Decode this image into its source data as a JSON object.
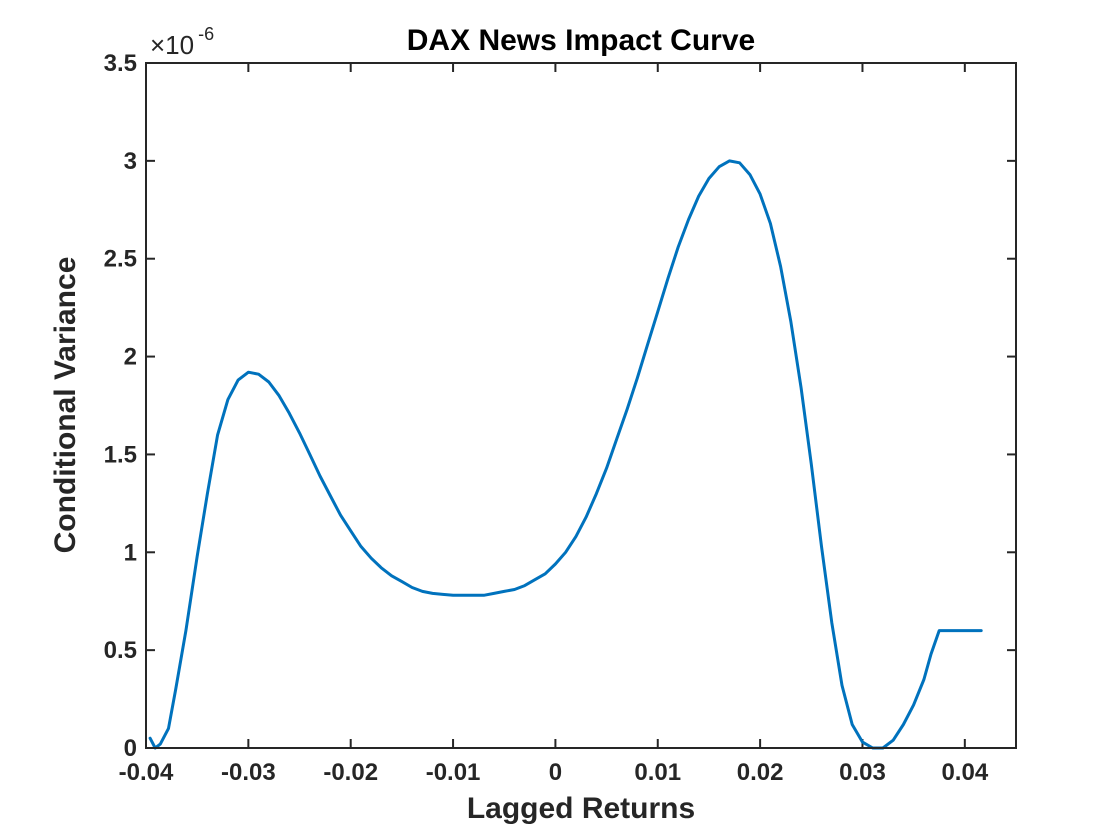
{
  "chart_data": {
    "type": "line",
    "title": "DAX News Impact Curve",
    "xlabel": "Lagged Returns",
    "ylabel": "Conditional Variance",
    "xlim": [
      -0.04,
      0.045
    ],
    "ylim": [
      0,
      3.5
    ],
    "x_ticks": [
      -0.04,
      -0.03,
      -0.02,
      -0.01,
      0,
      0.01,
      0.02,
      0.03,
      0.04
    ],
    "x_tick_labels": [
      "-0.04",
      "-0.03",
      "-0.02",
      "-0.01",
      "0",
      "0.01",
      "0.02",
      "0.03",
      "0.04"
    ],
    "y_ticks": [
      0,
      0.5,
      1,
      1.5,
      2,
      2.5,
      3,
      3.5
    ],
    "y_tick_labels": [
      "0",
      "0.5",
      "1",
      "1.5",
      "2",
      "2.5",
      "3",
      "3.5"
    ],
    "y_multiplier_base": "×10",
    "y_multiplier_exponent": "-6",
    "grid": false,
    "line_color": "#0072bd",
    "series": [
      {
        "x": [
          -0.0396,
          -0.0391,
          -0.0386,
          -0.0378,
          -0.0371,
          -0.0361,
          -0.035,
          -0.034,
          -0.033,
          -0.032,
          -0.031,
          -0.03,
          -0.029,
          -0.028,
          -0.027,
          -0.026,
          -0.025,
          -0.024,
          -0.023,
          -0.022,
          -0.021,
          -0.02,
          -0.019,
          -0.018,
          -0.017,
          -0.016,
          -0.015,
          -0.014,
          -0.013,
          -0.012,
          -0.011,
          -0.01,
          -0.009,
          -0.008,
          -0.007,
          -0.006,
          -0.005,
          -0.004,
          -0.003,
          -0.002,
          -0.001,
          0.0,
          0.001,
          0.002,
          0.003,
          0.004,
          0.005,
          0.006,
          0.007,
          0.008,
          0.009,
          0.01,
          0.011,
          0.012,
          0.013,
          0.014,
          0.015,
          0.016,
          0.017,
          0.018,
          0.019,
          0.02,
          0.021,
          0.022,
          0.023,
          0.024,
          0.025,
          0.026,
          0.027,
          0.028,
          0.029,
          0.03,
          0.031,
          0.032,
          0.033,
          0.034,
          0.035,
          0.036,
          0.0367,
          0.0375,
          0.0383,
          0.0392,
          0.0403,
          0.0416
        ],
        "y": [
          0.05,
          0.0,
          0.02,
          0.1,
          0.3,
          0.6,
          0.98,
          1.3,
          1.6,
          1.78,
          1.88,
          1.92,
          1.91,
          1.87,
          1.8,
          1.71,
          1.61,
          1.5,
          1.39,
          1.29,
          1.19,
          1.11,
          1.03,
          0.97,
          0.92,
          0.88,
          0.85,
          0.82,
          0.8,
          0.79,
          0.785,
          0.78,
          0.78,
          0.78,
          0.78,
          0.79,
          0.8,
          0.81,
          0.83,
          0.86,
          0.89,
          0.94,
          1.0,
          1.08,
          1.18,
          1.3,
          1.43,
          1.58,
          1.73,
          1.89,
          2.06,
          2.23,
          2.4,
          2.56,
          2.7,
          2.82,
          2.91,
          2.97,
          3.0,
          2.99,
          2.93,
          2.83,
          2.68,
          2.46,
          2.18,
          1.84,
          1.45,
          1.03,
          0.64,
          0.32,
          0.12,
          0.03,
          0.0,
          0.0,
          0.04,
          0.12,
          0.22,
          0.35,
          0.48,
          0.6,
          0.6,
          0.6,
          0.6,
          0.6
        ]
      }
    ]
  }
}
